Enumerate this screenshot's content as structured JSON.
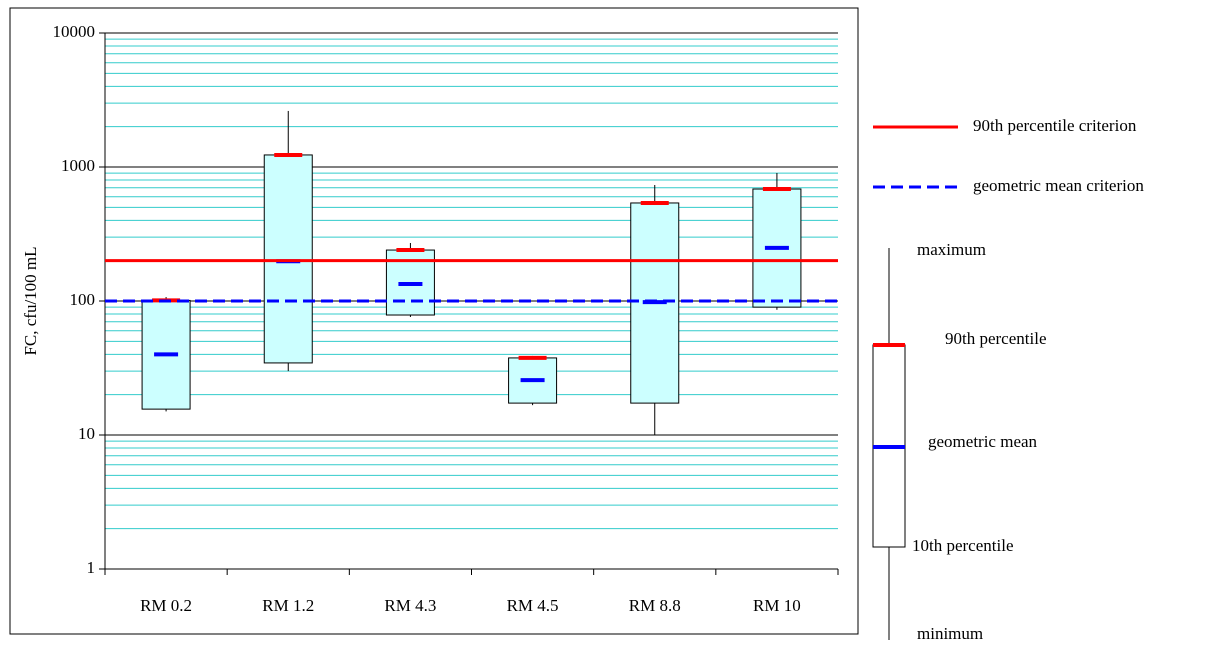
{
  "chart_data": {
    "type": "box",
    "y_label": "FC, cfu/100 mL",
    "categories": [
      "RM 0.2",
      "RM 1.2",
      "RM 4.3",
      "RM 4.5",
      "RM 8.8",
      "RM 10"
    ],
    "stats": {
      "minimum": [
        15,
        30,
        76,
        16.7,
        10,
        86
      ],
      "p10": [
        15.6,
        34.5,
        78.6,
        17.3,
        17.3,
        90
      ],
      "geometric_mean": [
        40,
        198,
        134,
        25.7,
        98,
        249
      ],
      "p90": [
        101,
        1230,
        240,
        37.6,
        539,
        685
      ],
      "maximum": [
        107,
        2620,
        271,
        38.9,
        734,
        902
      ]
    },
    "ylim": [
      1,
      10000
    ],
    "yticks": [
      1,
      10,
      100,
      1000,
      10000
    ],
    "log_scale": true,
    "grid": true,
    "minor_grid": true,
    "box_color": "#ccffff",
    "p90_color": "#ff0000",
    "geometric_mean_color": "#0000ff",
    "reference_lines": [
      {
        "name": "90th percentile criterion",
        "value": 200,
        "color": "#ff0000",
        "style": "solid"
      },
      {
        "name": "geometric mean criterion",
        "value": 100,
        "color": "#0000ff",
        "style": "dashed"
      }
    ],
    "box_legend_labels": [
      "maximum",
      "90th percentile",
      "geometric mean",
      "10th percentile",
      "minimum"
    ]
  }
}
